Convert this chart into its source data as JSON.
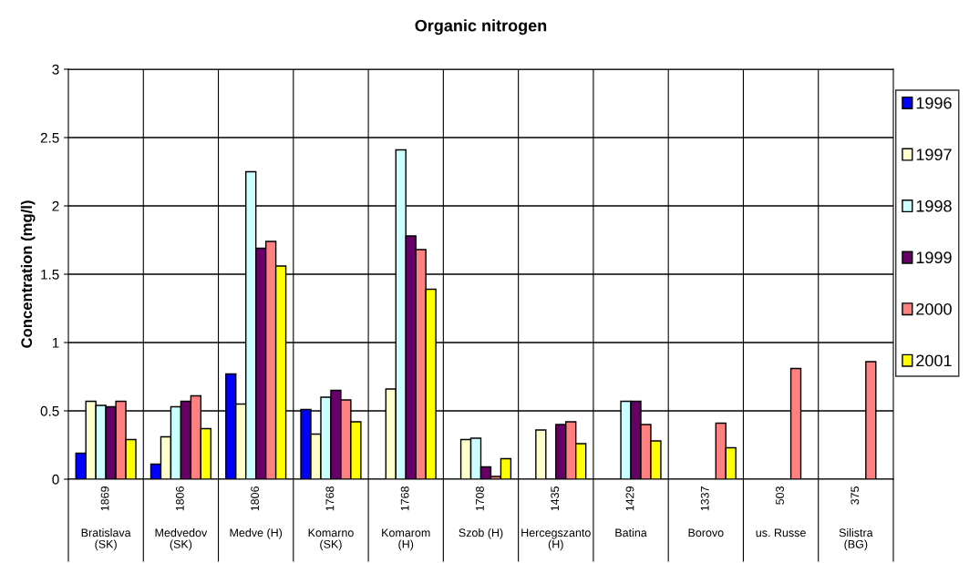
{
  "chart_data": {
    "type": "bar",
    "title": "Organic nitrogen",
    "ylabel": "Concentration (mg/l)",
    "categories": [
      "Bratislava\n(SK)",
      "Medvedov\n(SK)",
      "Medve (H)",
      "Komarno\n(SK)",
      "Komarom\n(H)",
      "Szob (H)",
      "Hercegszanto\n(H)",
      "Batina",
      "Borovo",
      "us. Russe",
      "Silistra\n(BG)"
    ],
    "annotations": [
      "1869",
      "1806",
      "1806",
      "1768",
      "1768",
      "1708",
      "1435",
      "1429",
      "1337",
      "503",
      "375"
    ],
    "series": [
      {
        "name": "1996",
        "color": "#0000ff",
        "values": [
          0.19,
          0.11,
          0.77,
          0.51,
          null,
          null,
          null,
          null,
          null,
          null,
          null
        ]
      },
      {
        "name": "1997",
        "color": "#ffffcc",
        "values": [
          0.57,
          0.31,
          0.55,
          0.33,
          0.66,
          0.29,
          0.36,
          null,
          null,
          null,
          null
        ]
      },
      {
        "name": "1998",
        "color": "#ccffff",
        "values": [
          0.54,
          0.53,
          2.25,
          0.6,
          2.41,
          0.3,
          null,
          0.57,
          null,
          null,
          null
        ]
      },
      {
        "name": "1999",
        "color": "#660066",
        "values": [
          0.53,
          0.57,
          1.69,
          0.65,
          1.78,
          0.09,
          0.4,
          0.57,
          null,
          null,
          null
        ]
      },
      {
        "name": "2000",
        "color": "#ff8080",
        "values": [
          0.57,
          0.61,
          1.74,
          0.58,
          1.68,
          0.02,
          0.42,
          0.4,
          0.41,
          0.81,
          0.86
        ]
      },
      {
        "name": "2001",
        "color": "#ffff00",
        "values": [
          0.29,
          0.37,
          1.56,
          0.42,
          1.39,
          0.15,
          0.26,
          0.28,
          0.23,
          null,
          null
        ]
      }
    ],
    "ylim": [
      0,
      3
    ],
    "yticks": [
      0,
      0.5,
      1,
      1.5,
      2,
      2.5,
      3
    ],
    "grid": true,
    "legend": "right"
  }
}
